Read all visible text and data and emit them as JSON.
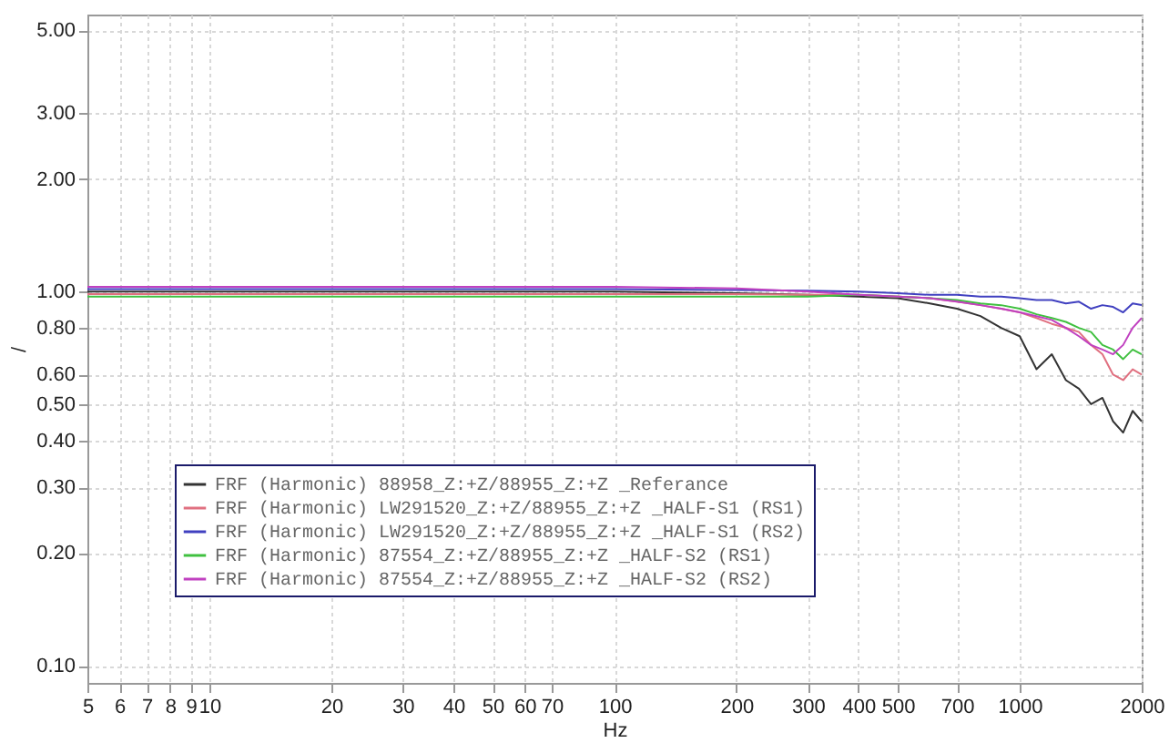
{
  "chart_data": {
    "type": "line",
    "xlabel": "Hz",
    "ylabel": "/",
    "log": "xy",
    "grid": true,
    "legend": "bottom left",
    "marker": "none",
    "line_style": "solid",
    "x": [
      5,
      7,
      10,
      20,
      50,
      100,
      200,
      300,
      400,
      500,
      600,
      700,
      800,
      900,
      1000,
      1100,
      1200,
      1300,
      1400,
      1500,
      1600,
      1700,
      1800,
      1900,
      2000
    ],
    "xlim": [
      5,
      2000
    ],
    "ylim": [
      0.09,
      5.5
    ],
    "xticks": [
      5,
      6,
      7,
      8,
      9,
      10,
      20,
      30,
      40,
      50,
      60,
      70,
      100,
      200,
      300,
      400,
      500,
      700,
      1000,
      2000
    ],
    "yticks": [
      {
        "value": 0.1,
        "label": "0.10"
      },
      {
        "value": 0.2,
        "label": "0.20"
      },
      {
        "value": 0.3,
        "label": "0.30"
      },
      {
        "value": 0.4,
        "label": "0.40"
      },
      {
        "value": 0.5,
        "label": "0.50"
      },
      {
        "value": 0.6,
        "label": "0.60"
      },
      {
        "value": 0.8,
        "label": "0.80"
      },
      {
        "value": 1,
        "label": "1.00"
      },
      {
        "value": 2,
        "label": "2.00"
      },
      {
        "value": 3,
        "label": "3.00"
      },
      {
        "value": 5,
        "label": "5.00"
      }
    ],
    "series": [
      {
        "name": "FRF (Harmonic) 88958_Z:+Z/88955_Z:+Z _Referance",
        "color": "#333333",
        "values": [
          1,
          1,
          1,
          1,
          1,
          1,
          0.99,
          0.98,
          0.97,
          0.96,
          0.93,
          0.9,
          0.86,
          0.8,
          0.76,
          0.62,
          0.68,
          0.58,
          0.55,
          0.5,
          0.52,
          0.45,
          0.42,
          0.48,
          0.45
        ]
      },
      {
        "name": "FRF (Harmonic) LW291520_Z:+Z/88955_Z:+Z _HALF-S1 (RS1)",
        "color": "#e07080",
        "values": [
          0.985,
          0.985,
          0.985,
          0.985,
          0.985,
          0.985,
          0.985,
          0.98,
          0.98,
          0.97,
          0.96,
          0.94,
          0.92,
          0.9,
          0.88,
          0.85,
          0.82,
          0.8,
          0.78,
          0.72,
          0.68,
          0.6,
          0.58,
          0.62,
          0.6
        ]
      },
      {
        "name": "FRF (Harmonic) LW291520_Z:+Z/88955_Z:+Z _HALF-S1 (RS2)",
        "color": "#4040c0",
        "values": [
          1.015,
          1.015,
          1.015,
          1.015,
          1.015,
          1.015,
          1.01,
          1.005,
          1,
          0.99,
          0.98,
          0.98,
          0.97,
          0.97,
          0.96,
          0.95,
          0.95,
          0.93,
          0.94,
          0.9,
          0.92,
          0.91,
          0.88,
          0.93,
          0.92
        ]
      },
      {
        "name": "FRF (Harmonic) 87554_Z:+Z/88955_Z:+Z _HALF-S2 (RS1)",
        "color": "#40c040",
        "values": [
          0.97,
          0.97,
          0.97,
          0.97,
          0.97,
          0.97,
          0.97,
          0.97,
          0.98,
          0.97,
          0.96,
          0.95,
          0.93,
          0.92,
          0.9,
          0.87,
          0.85,
          0.83,
          0.8,
          0.78,
          0.72,
          0.7,
          0.66,
          0.7,
          0.68
        ]
      },
      {
        "name": "FRF (Harmonic) 87554_Z:+Z/88955_Z:+Z _HALF-S2 (RS2)",
        "color": "#c040c0",
        "values": [
          1.03,
          1.03,
          1.03,
          1.03,
          1.03,
          1.03,
          1.02,
          1.0,
          0.98,
          0.97,
          0.96,
          0.94,
          0.92,
          0.9,
          0.88,
          0.86,
          0.84,
          0.8,
          0.76,
          0.72,
          0.7,
          0.68,
          0.72,
          0.8,
          0.85
        ]
      }
    ]
  }
}
